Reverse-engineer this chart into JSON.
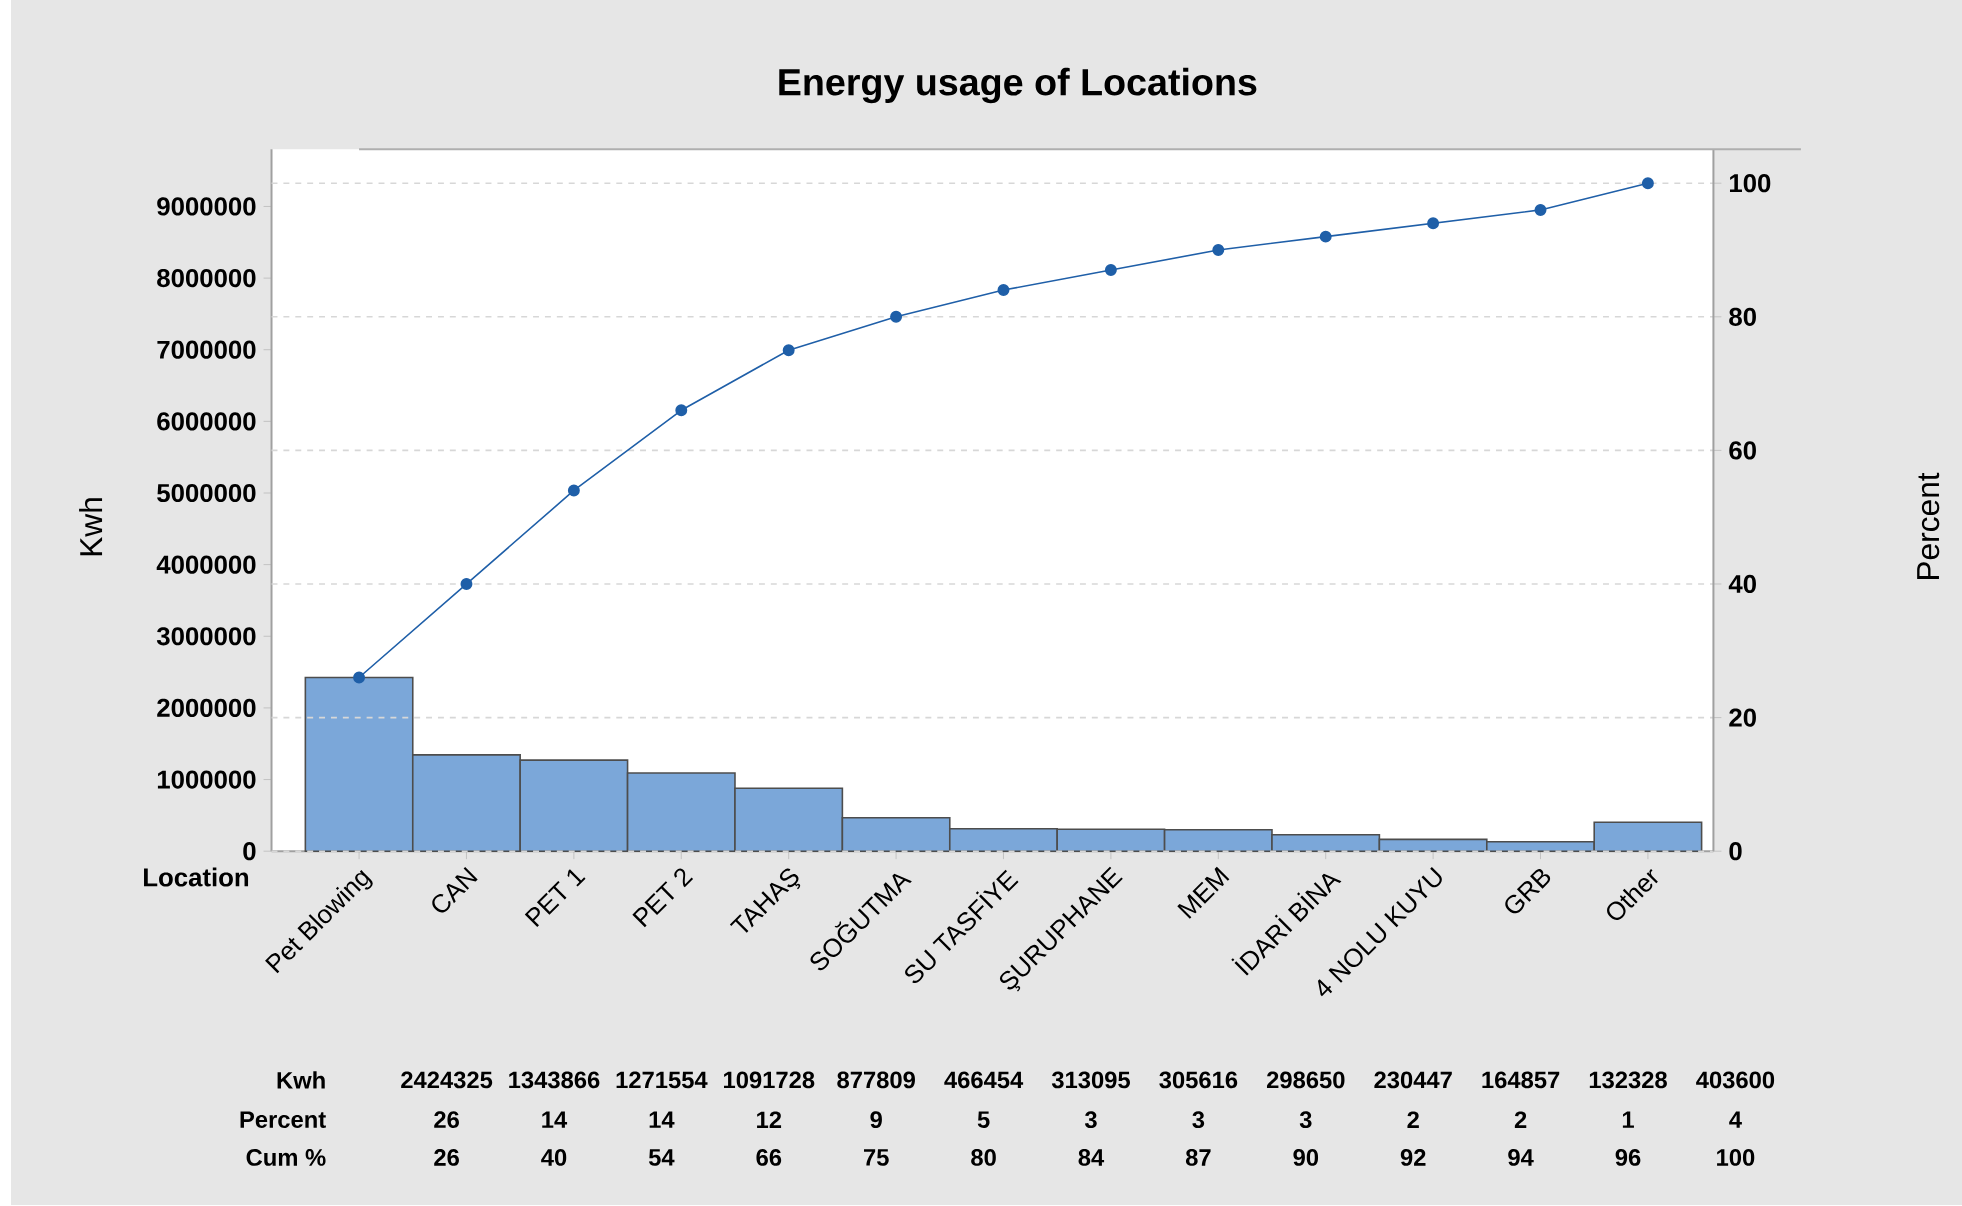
{
  "chart_data": {
    "type": "bar",
    "title": "Energy usage of Locations",
    "xlabel": "Location",
    "ylabel": "Kwh",
    "y2label": "Percent",
    "categories": [
      "Pet Blowing",
      "CAN",
      "PET 1",
      "PET 2",
      "TAHAŞ",
      "SOĞUTMA",
      "SU TASFİYE",
      "ŞURUPHANE",
      "MEM",
      "İDARİ BİNA",
      "4 NOLU KUYU",
      "GRB",
      "Other"
    ],
    "series": [
      {
        "color": "#7ba7d9",
        "values": [
          2424325,
          1343866,
          1271554,
          1091728,
          877809,
          466454,
          313095,
          305616,
          298650,
          230447,
          164857,
          132328,
          403600
        ]
      },
      {
        "type": "line",
        "axis": "y2",
        "color": "#1f5fa8",
        "values": [
          26,
          40,
          54,
          66,
          75,
          80,
          84,
          87,
          90,
          92,
          94,
          96,
          100
        ]
      }
    ],
    "ylim": [
      0,
      9800000
    ],
    "yticks": [
      0,
      1000000,
      2000000,
      3000000,
      4000000,
      5000000,
      6000000,
      7000000,
      8000000,
      9000000
    ],
    "y2lim": [
      0,
      105.1
    ],
    "y2ticks": [
      0,
      20,
      40,
      60,
      80,
      100
    ],
    "grid": "y",
    "marker": "circle",
    "line_style": "solid",
    "annotations": [
      "Kwh",
      "2424325",
      "1343866",
      "1271554",
      "1091728",
      "877809",
      "466454",
      "313095",
      "305616",
      "298650",
      "230447",
      "164857",
      "132328",
      "403600",
      "Percent",
      "26",
      "14",
      "14",
      "12",
      "9",
      "5",
      "3",
      "3",
      "3",
      "2",
      "2",
      "1",
      "4",
      "Cum %",
      "26",
      "40",
      "54",
      "66",
      "75",
      "80",
      "84",
      "87",
      "90",
      "92",
      "94",
      "96",
      "100"
    ]
  }
}
